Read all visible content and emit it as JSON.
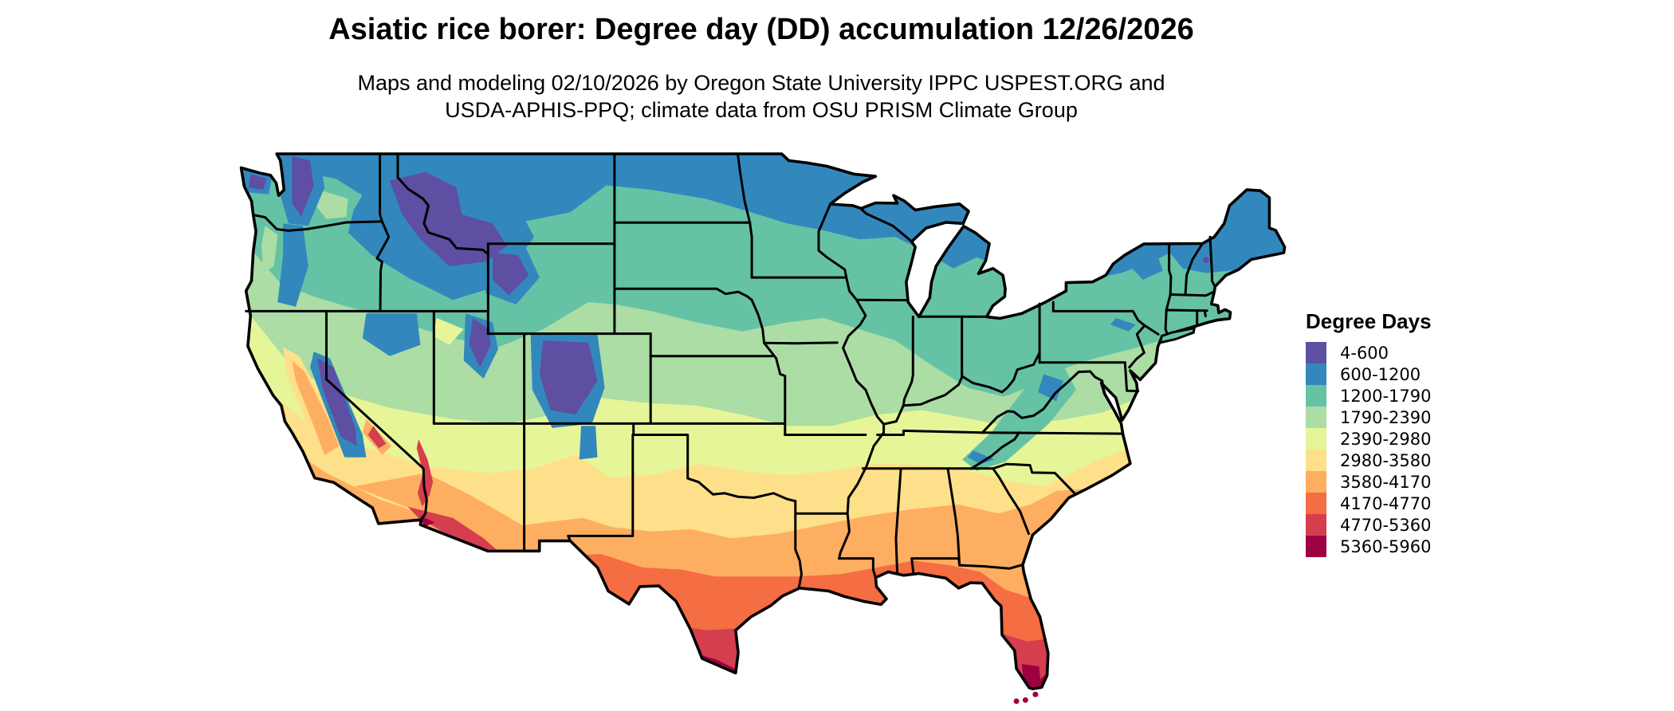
{
  "figure": {
    "title": "Asiatic rice borer: Degree day (DD) accumulation 12/26/2026",
    "subtitle_line1": "Maps and modeling 02/10/2026 by Oregon State University IPPC USPEST.ORG and",
    "subtitle_line2": "USDA-APHIS-PPQ; climate data from OSU PRISM Climate Group",
    "model_species": "Asiatic rice borer",
    "accumulation_date": "12/26/2026",
    "modeling_date": "02/10/2026"
  },
  "legend": {
    "title": "Degree Days",
    "items": [
      {
        "label": "4-600",
        "color": "#5e4fa2"
      },
      {
        "label": "600-1200",
        "color": "#3288bd"
      },
      {
        "label": "1200-1790",
        "color": "#66c2a5"
      },
      {
        "label": "1790-2390",
        "color": "#abdda4"
      },
      {
        "label": "2390-2980",
        "color": "#e6f598"
      },
      {
        "label": "2980-3580",
        "color": "#fee08b"
      },
      {
        "label": "3580-4170",
        "color": "#fdae61"
      },
      {
        "label": "4170-4770",
        "color": "#f46d43"
      },
      {
        "label": "4770-5360",
        "color": "#d53e4f"
      },
      {
        "label": "5360-5960",
        "color": "#9e0142"
      }
    ]
  },
  "map": {
    "region": "Contiguous United States",
    "border_color": "#000000",
    "background_color": "#ffffff"
  }
}
